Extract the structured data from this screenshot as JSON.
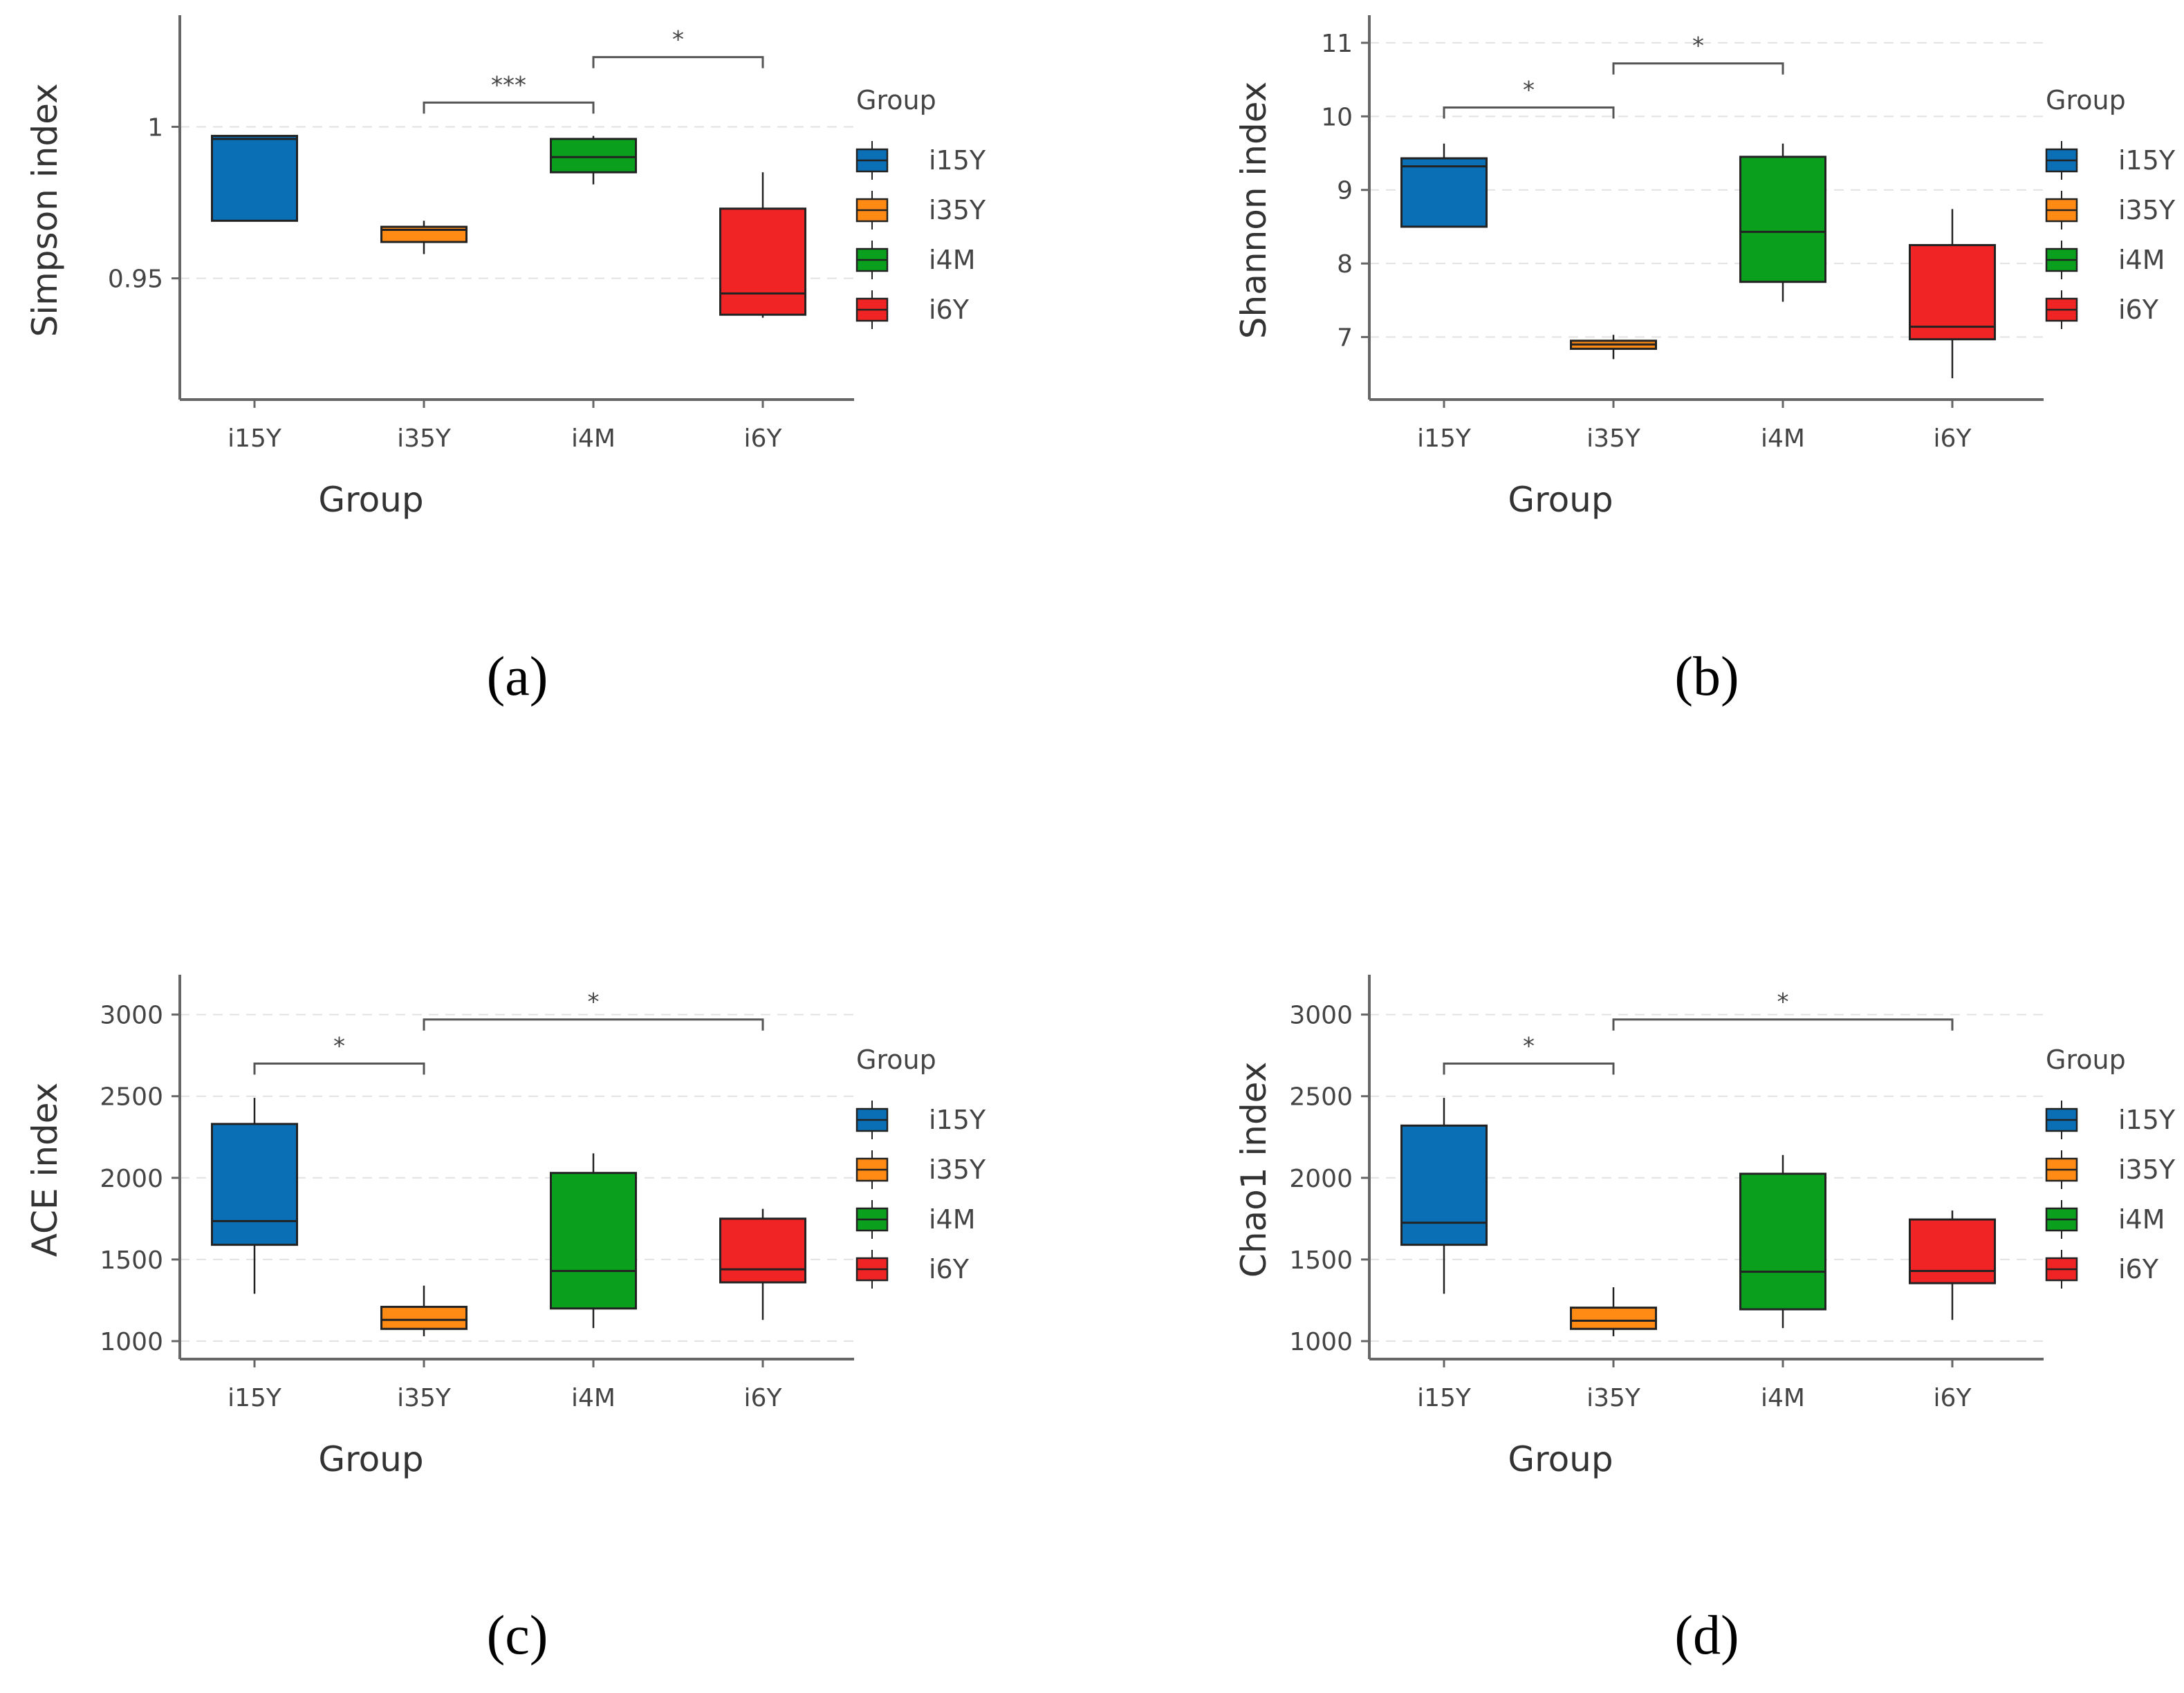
{
  "groups": [
    {
      "name": "i15Y",
      "color": "#0a6fb5"
    },
    {
      "name": "i35Y",
      "color": "#ff8a14"
    },
    {
      "name": "i4M",
      "color": "#0aa01e"
    },
    {
      "name": "i6Y",
      "color": "#f02424"
    }
  ],
  "legend_title": "Group",
  "chart_data": [
    {
      "type": "box",
      "panel_label": "(a)",
      "xlabel": "Group",
      "ylabel": "Simpson index",
      "ylim": [
        0.91,
        1.035
      ],
      "yticks": [
        0.95,
        1
      ],
      "ytick_labels": [
        "0.95",
        "1"
      ],
      "categories": [
        "i15Y",
        "i35Y",
        "i4M",
        "i6Y"
      ],
      "boxes": [
        {
          "min": 0.969,
          "q1": 0.969,
          "median": 0.996,
          "q3": 0.997,
          "max": 0.997
        },
        {
          "min": 0.958,
          "q1": 0.962,
          "median": 0.966,
          "q3": 0.967,
          "max": 0.969
        },
        {
          "min": 0.981,
          "q1": 0.985,
          "median": 0.99,
          "q3": 0.996,
          "max": 0.997
        },
        {
          "min": 0.937,
          "q1": 0.938,
          "median": 0.945,
          "q3": 0.973,
          "max": 0.985
        }
      ],
      "significance": [
        {
          "from": 1,
          "to": 2,
          "label": "***",
          "y": 1.008
        },
        {
          "from": 2,
          "to": 3,
          "label": "*",
          "y": 1.023
        }
      ]
    },
    {
      "type": "box",
      "panel_label": "(b)",
      "xlabel": "Group",
      "ylabel": "Shannon index",
      "ylim": [
        6.15,
        11.3
      ],
      "yticks": [
        7,
        8,
        9,
        10,
        11
      ],
      "ytick_labels": [
        "7",
        "8",
        "9",
        "10",
        "11"
      ],
      "categories": [
        "i15Y",
        "i35Y",
        "i4M",
        "i6Y"
      ],
      "boxes": [
        {
          "min": 8.5,
          "q1": 8.5,
          "median": 9.32,
          "q3": 9.43,
          "max": 9.63
        },
        {
          "min": 6.7,
          "q1": 6.84,
          "median": 6.9,
          "q3": 6.95,
          "max": 7.03
        },
        {
          "min": 7.48,
          "q1": 7.75,
          "median": 8.43,
          "q3": 9.45,
          "max": 9.63
        },
        {
          "min": 6.44,
          "q1": 6.97,
          "median": 7.14,
          "q3": 8.25,
          "max": 8.74
        }
      ],
      "significance": [
        {
          "from": 0,
          "to": 1,
          "label": "*",
          "y": 10.12
        },
        {
          "from": 1,
          "to": 2,
          "label": "*",
          "y": 10.72
        }
      ]
    },
    {
      "type": "box",
      "panel_label": "(c)",
      "xlabel": "Group",
      "ylabel": "ACE index",
      "ylim": [
        890,
        3210
      ],
      "yticks": [
        1000,
        1500,
        2000,
        2500,
        3000
      ],
      "ytick_labels": [
        "1000",
        "1500",
        "2000",
        "2500",
        "3000"
      ],
      "categories": [
        "i15Y",
        "i35Y",
        "i4M",
        "i6Y"
      ],
      "boxes": [
        {
          "min": 1290,
          "q1": 1590,
          "median": 1735,
          "q3": 2330,
          "max": 2490
        },
        {
          "min": 1030,
          "q1": 1075,
          "median": 1130,
          "q3": 1210,
          "max": 1340
        },
        {
          "min": 1080,
          "q1": 1200,
          "median": 1430,
          "q3": 2030,
          "max": 2150
        },
        {
          "min": 1130,
          "q1": 1360,
          "median": 1440,
          "q3": 1750,
          "max": 1810
        }
      ],
      "significance": [
        {
          "from": 0,
          "to": 1,
          "label": "*",
          "y": 2700
        },
        {
          "from": 1,
          "to": 3,
          "label": "*",
          "y": 2970
        }
      ]
    },
    {
      "type": "box",
      "panel_label": "(d)",
      "xlabel": "Group",
      "ylabel": "Chao1 index",
      "ylim": [
        890,
        3210
      ],
      "yticks": [
        1000,
        1500,
        2000,
        2500,
        3000
      ],
      "ytick_labels": [
        "1000",
        "1500",
        "2000",
        "2500",
        "3000"
      ],
      "categories": [
        "i15Y",
        "i35Y",
        "i4M",
        "i6Y"
      ],
      "boxes": [
        {
          "min": 1290,
          "q1": 1590,
          "median": 1725,
          "q3": 2320,
          "max": 2490
        },
        {
          "min": 1030,
          "q1": 1075,
          "median": 1125,
          "q3": 1205,
          "max": 1330
        },
        {
          "min": 1080,
          "q1": 1195,
          "median": 1425,
          "q3": 2025,
          "max": 2140
        },
        {
          "min": 1130,
          "q1": 1355,
          "median": 1430,
          "q3": 1745,
          "max": 1800
        }
      ],
      "significance": [
        {
          "from": 0,
          "to": 1,
          "label": "*",
          "y": 2700
        },
        {
          "from": 1,
          "to": 3,
          "label": "*",
          "y": 2970
        }
      ]
    }
  ]
}
